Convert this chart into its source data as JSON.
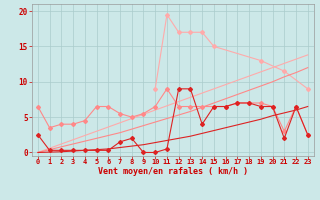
{
  "xlabel": "Vent moyen/en rafales ( km/h )",
  "background_color": "#cce8e8",
  "grid_color": "#aacccc",
  "x": [
    0,
    1,
    2,
    3,
    4,
    5,
    6,
    7,
    8,
    9,
    10,
    11,
    12,
    13,
    14,
    15,
    16,
    17,
    18,
    19,
    20,
    21,
    22,
    23
  ],
  "ylim": [
    -0.5,
    21
  ],
  "yticks": [
    0,
    5,
    10,
    15,
    20
  ],
  "series": [
    {
      "name": "light_pink_trend",
      "color": "#ffaaaa",
      "linewidth": 0.8,
      "marker": null,
      "markersize": 0,
      "alpha": 1.0,
      "values": [
        0.0,
        0.6,
        1.2,
        1.8,
        2.4,
        3.0,
        3.6,
        4.2,
        4.8,
        5.4,
        6.0,
        6.6,
        7.2,
        7.8,
        8.4,
        9.0,
        9.6,
        10.2,
        10.8,
        11.4,
        12.0,
        12.6,
        13.2,
        13.8
      ]
    },
    {
      "name": "light_pink_data",
      "color": "#ffaaaa",
      "linewidth": 0.8,
      "marker": "D",
      "markersize": 2.0,
      "alpha": 1.0,
      "values": [
        null,
        null,
        null,
        null,
        null,
        null,
        null,
        null,
        null,
        null,
        9.0,
        19.5,
        17.0,
        17.0,
        17.0,
        15.0,
        null,
        null,
        null,
        13.0,
        null,
        11.5,
        null,
        9.0
      ]
    },
    {
      "name": "medium_pink_trend",
      "color": "#ff8888",
      "linewidth": 0.8,
      "marker": null,
      "markersize": 0,
      "alpha": 1.0,
      "values": [
        0.0,
        0.4,
        0.8,
        1.2,
        1.6,
        2.0,
        2.4,
        2.8,
        3.3,
        3.8,
        4.3,
        4.8,
        5.3,
        5.8,
        6.4,
        7.0,
        7.6,
        8.2,
        8.8,
        9.4,
        10.0,
        10.7,
        11.3,
        12.0
      ]
    },
    {
      "name": "medium_pink_data",
      "color": "#ff8888",
      "linewidth": 0.8,
      "marker": "D",
      "markersize": 2.0,
      "alpha": 1.0,
      "values": [
        6.5,
        3.5,
        4.0,
        4.0,
        4.5,
        6.5,
        6.5,
        5.5,
        5.0,
        5.5,
        6.5,
        9.0,
        6.5,
        6.5,
        6.5,
        6.5,
        6.5,
        7.0,
        7.0,
        7.0,
        6.5,
        3.0,
        6.5,
        2.5
      ]
    },
    {
      "name": "dark_red_trend",
      "color": "#dd2222",
      "linewidth": 0.8,
      "marker": null,
      "markersize": 0,
      "alpha": 1.0,
      "values": [
        0.0,
        0.05,
        0.1,
        0.2,
        0.3,
        0.4,
        0.5,
        0.7,
        0.9,
        1.1,
        1.4,
        1.7,
        2.0,
        2.3,
        2.7,
        3.1,
        3.5,
        3.9,
        4.3,
        4.7,
        5.2,
        5.6,
        6.0,
        6.5
      ]
    },
    {
      "name": "dark_red_data",
      "color": "#dd2222",
      "linewidth": 0.8,
      "marker": "D",
      "markersize": 2.0,
      "alpha": 1.0,
      "values": [
        2.5,
        0.3,
        0.3,
        0.3,
        0.3,
        0.3,
        0.3,
        1.5,
        2.0,
        0.0,
        0.0,
        0.5,
        9.0,
        9.0,
        4.0,
        6.5,
        6.5,
        7.0,
        7.0,
        6.5,
        6.5,
        2.0,
        6.5,
        2.5
      ]
    }
  ]
}
